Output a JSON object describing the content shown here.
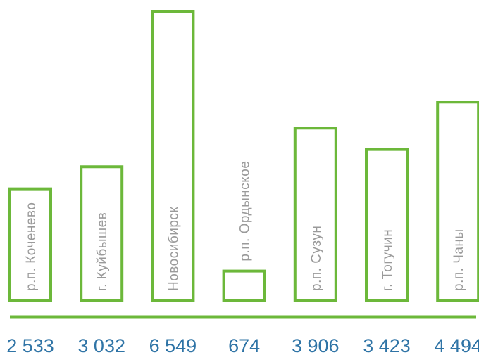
{
  "chart_data": {
    "type": "bar",
    "categories": [
      "р.п. Коченево",
      "г. Куйбышев",
      "Новосибирск",
      "р.п. Ордынское",
      "р.п. Сузун",
      "г. Тогучин",
      "р.п. Чаны"
    ],
    "values": [
      2533,
      3032,
      6549,
      674,
      3906,
      3423,
      4494
    ],
    "value_labels": [
      "2 533",
      "3 032",
      "6 549",
      "674",
      "3 906",
      "3 423",
      "4 494"
    ],
    "title": "",
    "xlabel": "",
    "ylabel": "",
    "ylim": [
      0,
      6549
    ],
    "grid": false,
    "legend": "none",
    "colors": {
      "bar_outline": "#6cb83a",
      "bar_fill": "#ffffff",
      "category_text": "#9a9a9a",
      "value_text": "#2f74a6",
      "baseline": "#6cb83a"
    }
  }
}
